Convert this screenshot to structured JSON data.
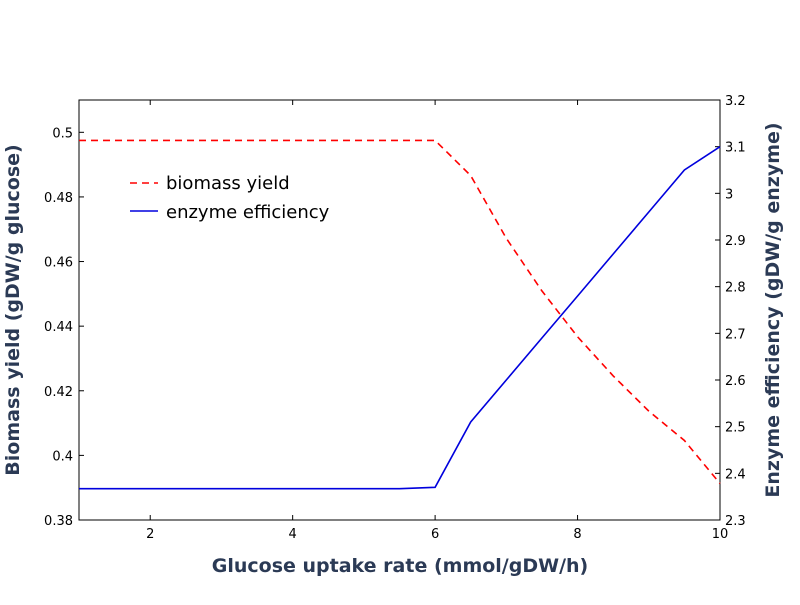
{
  "chart_data": {
    "type": "line",
    "title": "",
    "xlabel": "Glucose uptake rate (mmol/gDW/h)",
    "ylabel_left": "Biomass yield (gDW/g glucose)",
    "ylabel_right": "Enzyme efficiency (gDW/g enzyme)",
    "xlim": [
      1,
      10
    ],
    "ylim_left": [
      0.38,
      0.51
    ],
    "ylim_right": [
      2.3,
      3.2
    ],
    "x_ticks": [
      2,
      4,
      6,
      8,
      10
    ],
    "y_ticks_left": [
      0.38,
      0.4,
      0.42,
      0.44,
      0.46,
      0.48,
      0.5
    ],
    "y_ticks_right": [
      2.3,
      2.4,
      2.5,
      2.6,
      2.7,
      2.8,
      2.9,
      3.0,
      3.1,
      3.2
    ],
    "x_tick_labels": [
      "2",
      "4",
      "6",
      "8",
      "10"
    ],
    "y_tick_labels_left": [
      "0.38",
      "0.4",
      "0.42",
      "0.44",
      "0.46",
      "0.48",
      "0.5"
    ],
    "y_tick_labels_right": [
      "2.3",
      "2.4",
      "2.5",
      "2.6",
      "2.7",
      "2.8",
      "2.9",
      "3",
      "3.1",
      "3.2"
    ],
    "grid": false,
    "legend_position": "upper-left",
    "series": [
      {
        "name": "biomass yield",
        "axis": "left",
        "color": "#ff0000",
        "style": "dashed",
        "x": [
          1,
          2,
          3,
          4,
          5,
          5.5,
          6,
          6.5,
          7,
          7.5,
          8,
          8.5,
          9,
          9.5,
          10
        ],
        "y": [
          0.4975,
          0.4975,
          0.4975,
          0.4975,
          0.4975,
          0.4975,
          0.4975,
          0.4866,
          0.4672,
          0.4509,
          0.4367,
          0.4246,
          0.4137,
          0.4046,
          0.3913
        ]
      },
      {
        "name": "enzyme efficiency",
        "axis": "right",
        "color": "#0000dd",
        "style": "solid",
        "x": [
          1,
          2,
          3,
          4,
          5,
          5.5,
          6,
          6.5,
          7,
          7.5,
          8,
          8.5,
          9,
          9.5,
          10
        ],
        "y": [
          2.367,
          2.367,
          2.367,
          2.367,
          2.367,
          2.367,
          2.37,
          2.51,
          2.6,
          2.69,
          2.78,
          2.87,
          2.96,
          3.05,
          3.1
        ]
      }
    ]
  }
}
